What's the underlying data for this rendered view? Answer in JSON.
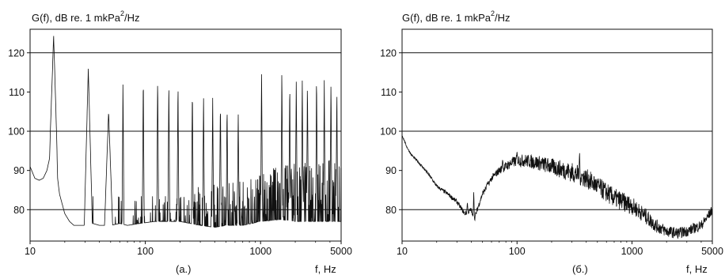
{
  "chart_data": [
    {
      "type": "line",
      "panel_label": "(a.)",
      "ylabel": "G(f), dB re. 1 mkPa",
      "ylabel_sup": "2",
      "ylabel_suffix": "/Hz",
      "xlabel": "f, Hz",
      "xscale": "log",
      "xlim": [
        10,
        5000
      ],
      "ylim": [
        72,
        126
      ],
      "xticks": [
        10,
        100,
        1000,
        5000
      ],
      "xtick_labels": [
        "10",
        "100",
        "1000",
        "5000"
      ],
      "yticks": [
        80,
        90,
        100,
        110,
        120
      ],
      "ytick_labels": [
        "80",
        "90",
        "100",
        "110",
        "120"
      ],
      "grid_y": [
        80,
        100,
        120
      ],
      "series": [
        {
          "baseline": [
            [
              10,
              91
            ],
            [
              11,
              88
            ],
            [
              12,
              87.5
            ],
            [
              13,
              88
            ],
            [
              14,
              90
            ],
            [
              15,
              94
            ],
            [
              17,
              90
            ],
            [
              18,
              84
            ],
            [
              20,
              79
            ],
            [
              22,
              77
            ],
            [
              24,
              76
            ],
            [
              27,
              76
            ],
            [
              30,
              76
            ],
            [
              35,
              76.5
            ],
            [
              40,
              76
            ],
            [
              50,
              76
            ],
            [
              60,
              76.5
            ],
            [
              70,
              76
            ],
            [
              90,
              76.5
            ],
            [
              120,
              77
            ],
            [
              150,
              77
            ],
            [
              200,
              77
            ],
            [
              300,
              76
            ],
            [
              400,
              75.5
            ],
            [
              500,
              76
            ],
            [
              700,
              76
            ],
            [
              1000,
              77
            ],
            [
              1500,
              77.5
            ],
            [
              2000,
              77
            ],
            [
              3000,
              77
            ],
            [
              4000,
              77
            ],
            [
              5000,
              77
            ]
          ],
          "envelope": [
            [
              10,
              84
            ],
            [
              200,
              84
            ],
            [
              300,
              86
            ],
            [
              500,
              87
            ],
            [
              700,
              88
            ],
            [
              1000,
              90
            ],
            [
              2000,
              92
            ],
            [
              3000,
              93
            ],
            [
              5000,
              93
            ]
          ],
          "peaks": [
            [
              16,
              124.5
            ],
            [
              32,
              116
            ],
            [
              48,
              105
            ],
            [
              64,
              113.5
            ],
            [
              96,
              115
            ],
            [
              128,
              114.5
            ],
            [
              160,
              114
            ],
            [
              192,
              113
            ],
            [
              256,
              111.5
            ],
            [
              320,
              110.5
            ],
            [
              384,
              110
            ],
            [
              448,
              108
            ],
            [
              512,
              107
            ],
            [
              640,
              105
            ],
            [
              1020,
              115.5
            ],
            [
              1530,
              116.5
            ],
            [
              1790,
              113
            ],
            [
              2040,
              113
            ],
            [
              2300,
              113.5
            ],
            [
              2550,
              113
            ],
            [
              3060,
              115
            ],
            [
              3570,
              114
            ],
            [
              4080,
              113
            ],
            [
              4590,
              111
            ]
          ]
        }
      ]
    },
    {
      "type": "line",
      "panel_label": "(б.)",
      "ylabel": "G(f), dB re. 1 mkPa",
      "ylabel_sup": "2",
      "ylabel_suffix": "/Hz",
      "xlabel": "f, Hz",
      "xscale": "log",
      "xlim": [
        10,
        5000
      ],
      "ylim": [
        72,
        126
      ],
      "xticks": [
        10,
        100,
        1000,
        5000
      ],
      "xtick_labels": [
        "10",
        "100",
        "1000",
        "5000"
      ],
      "yticks": [
        80,
        90,
        100,
        110,
        120
      ],
      "ytick_labels": [
        "80",
        "90",
        "100",
        "110",
        "120"
      ],
      "grid_y": [
        80,
        100,
        120
      ],
      "series": [
        {
          "baseline": [
            [
              10,
              99
            ],
            [
              11,
              96
            ],
            [
              12,
              94
            ],
            [
              14,
              92
            ],
            [
              16,
              90
            ],
            [
              18,
              88
            ],
            [
              20,
              86
            ],
            [
              25,
              84
            ],
            [
              30,
              82
            ],
            [
              35,
              79
            ],
            [
              38,
              79.5
            ],
            [
              40,
              80
            ],
            [
              42,
              77
            ],
            [
              45,
              80
            ],
            [
              50,
              84
            ],
            [
              55,
              86
            ],
            [
              60,
              88
            ],
            [
              70,
              90
            ],
            [
              80,
              91
            ],
            [
              90,
              92
            ],
            [
              100,
              92.5
            ],
            [
              120,
              92.5
            ],
            [
              150,
              92
            ],
            [
              200,
              91
            ],
            [
              300,
              89.5
            ],
            [
              400,
              88
            ],
            [
              500,
              86
            ],
            [
              700,
              83
            ],
            [
              1000,
              81
            ],
            [
              1300,
              78.5
            ],
            [
              1600,
              76
            ],
            [
              2000,
              74.5
            ],
            [
              2500,
              74
            ],
            [
              3000,
              74.5
            ],
            [
              4000,
              76
            ],
            [
              4500,
              78
            ],
            [
              5000,
              80
            ]
          ],
          "noise_amplitude": [
            [
              10,
              0.2
            ],
            [
              60,
              0.8
            ],
            [
              100,
              1.5
            ],
            [
              300,
              2.5
            ],
            [
              800,
              2.5
            ],
            [
              2000,
              1.5
            ],
            [
              5000,
              1.2
            ]
          ],
          "peaks": [
            [
              37,
              82
            ],
            [
              42,
              85
            ],
            [
              55,
              87
            ],
            [
              75,
              93
            ],
            [
              100,
              95
            ],
            [
              350,
              95
            ]
          ]
        }
      ]
    }
  ]
}
